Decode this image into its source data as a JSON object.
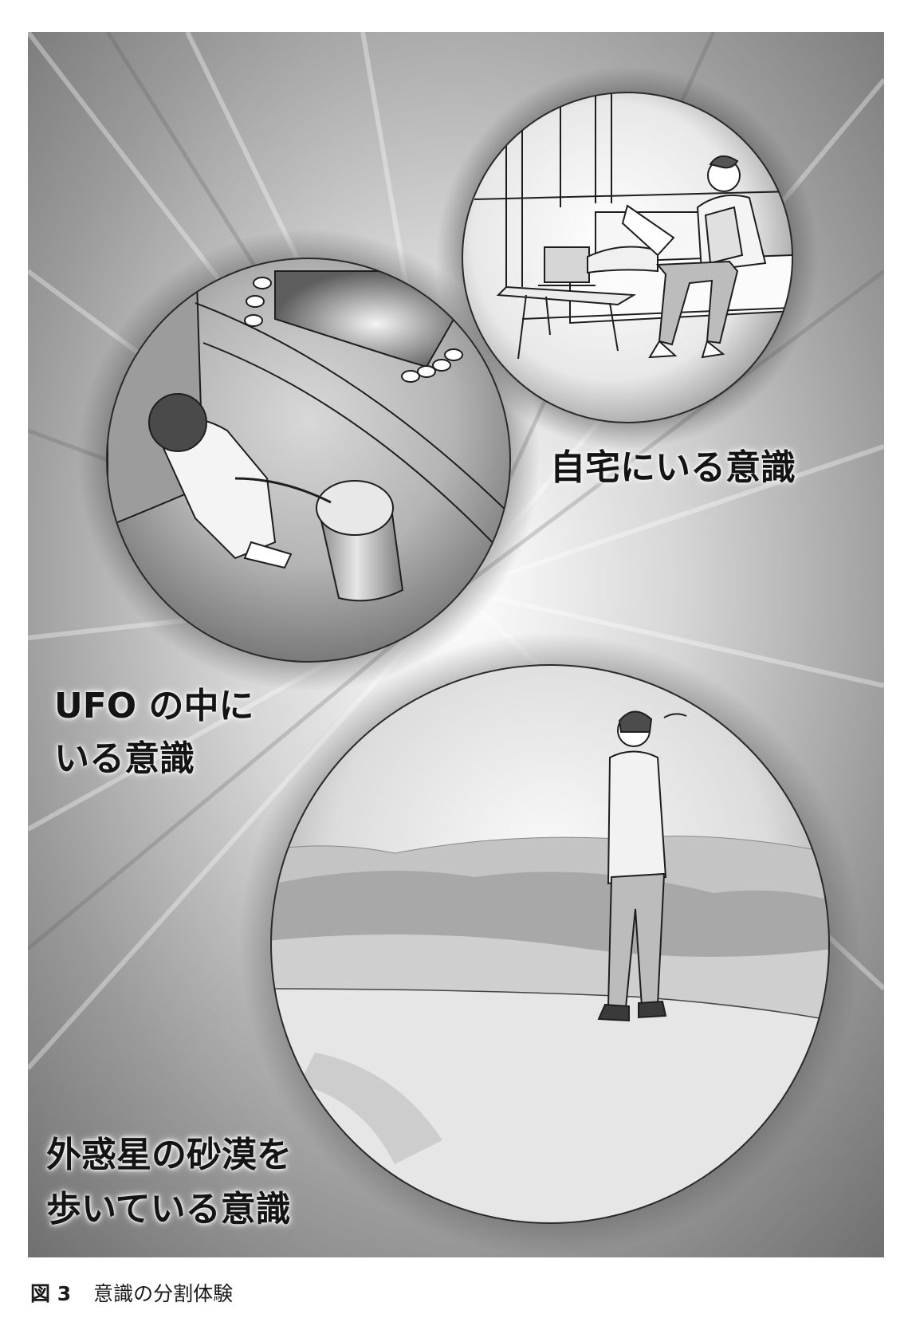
{
  "figure": {
    "panels": {
      "home": {
        "label": "自宅にいる意識"
      },
      "ufo": {
        "label_lines": [
          "UFO の中に",
          "いる意識"
        ]
      },
      "desert": {
        "label_lines": [
          "外惑星の砂漠を",
          "歩いている意識"
        ]
      }
    }
  },
  "caption": {
    "number": "図 3",
    "text": "意識の分割体験"
  },
  "colors": {
    "background_light": "#f4f4f4",
    "background_dark": "#6a6a6a",
    "line": "#1e1e1e",
    "text": "#141414"
  }
}
